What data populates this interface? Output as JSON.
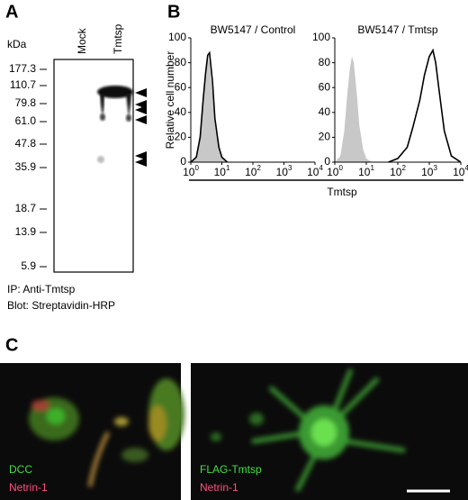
{
  "panels": {
    "a": {
      "label": "A",
      "unit": "kDa",
      "markers": [
        "177.3",
        "110.7",
        "79.8",
        "61.0",
        "47.8",
        "35.9",
        "18.7",
        "13.9",
        "5.9"
      ],
      "lanes": [
        "Mock",
        "Tmtsp"
      ],
      "caption": [
        "IP: Anti-Tmtsp",
        "Blot: Streptavidin-HRP"
      ]
    },
    "b": {
      "label": "B",
      "x_label": "Tmtsp"
    },
    "c": {
      "label": "C",
      "images": [
        {
          "labels": [
            "DCC",
            "Netrin-1"
          ]
        },
        {
          "labels": [
            "FLAG-Tmtsp",
            "Netrin-1"
          ]
        }
      ]
    }
  },
  "chart_data": [
    {
      "type": "histogram",
      "title": "BW5147 / Control",
      "y_label": "Relative cell number",
      "log_x": true,
      "xlim": [
        1,
        10000
      ],
      "xticks": [
        {
          "value": 1,
          "label": "10^0"
        },
        {
          "value": 10,
          "label": "10^1"
        },
        {
          "value": 100,
          "label": "10^2"
        },
        {
          "value": 1000,
          "label": "10^3"
        },
        {
          "value": 10000,
          "label": "10^4"
        }
      ],
      "ylim": [
        0,
        100
      ],
      "yticks": [
        0,
        20,
        40,
        60,
        80,
        100
      ],
      "series": [
        {
          "color": "#c8c8c8",
          "fill": true,
          "x": [
            1,
            1.5,
            2,
            2.5,
            3,
            3.5,
            4,
            5,
            6,
            8,
            10,
            15
          ],
          "values": [
            0,
            5,
            25,
            55,
            75,
            85,
            80,
            55,
            30,
            10,
            3,
            0
          ]
        },
        {
          "color": "#000000",
          "fill": false,
          "x": [
            1,
            1.5,
            2,
            2.5,
            3,
            3.5,
            4,
            5,
            6,
            8,
            10,
            15
          ],
          "values": [
            0,
            4,
            20,
            50,
            72,
            86,
            88,
            65,
            35,
            12,
            4,
            0
          ]
        }
      ]
    },
    {
      "type": "histogram",
      "title": "BW5147 / Tmtsp",
      "log_x": true,
      "xlim": [
        1,
        10000
      ],
      "xticks": [
        {
          "value": 1,
          "label": "10^0"
        },
        {
          "value": 10,
          "label": "10^1"
        },
        {
          "value": 100,
          "label": "10^2"
        },
        {
          "value": 1000,
          "label": "10^3"
        },
        {
          "value": 10000,
          "label": "10^4"
        }
      ],
      "ylim": [
        0,
        100
      ],
      "yticks": [
        0,
        20,
        40,
        60,
        80,
        100
      ],
      "series": [
        {
          "color": "#c8c8c8",
          "fill": true,
          "x": [
            1,
            1.5,
            2,
            2.5,
            3,
            3.5,
            4,
            5,
            6,
            8,
            10,
            15
          ],
          "values": [
            0,
            5,
            25,
            55,
            75,
            85,
            80,
            55,
            30,
            10,
            3,
            0
          ]
        },
        {
          "color": "#000000",
          "fill": false,
          "x": [
            50,
            100,
            200,
            300,
            500,
            700,
            1000,
            1300,
            1600,
            2000,
            3000,
            5000,
            10000
          ],
          "values": [
            0,
            3,
            12,
            28,
            50,
            70,
            85,
            90,
            80,
            60,
            25,
            5,
            0
          ]
        }
      ]
    }
  ]
}
